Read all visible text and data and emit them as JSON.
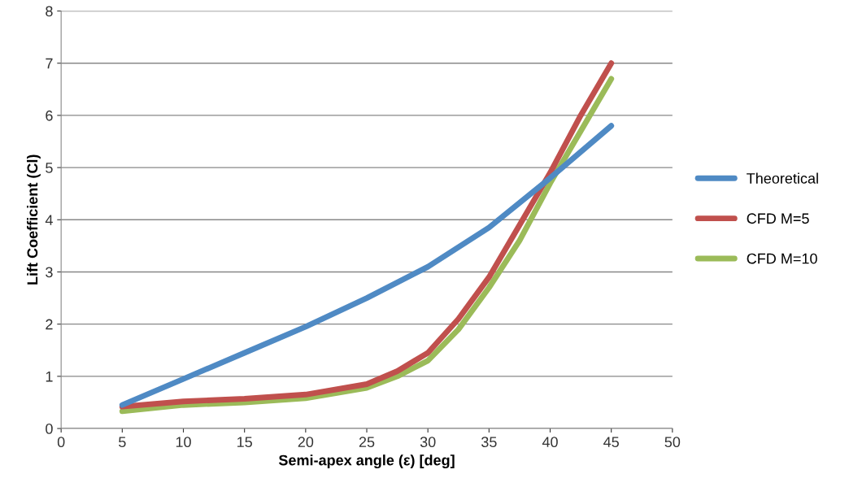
{
  "chart_data": {
    "type": "line",
    "xlabel": "Semi-apex angle (ε) [deg]",
    "ylabel": "Lift Coefficient (Cl)",
    "xlim": [
      0,
      50
    ],
    "xticks": [
      0,
      5,
      10,
      15,
      20,
      25,
      30,
      35,
      40,
      45,
      50
    ],
    "ylim": [
      0,
      8
    ],
    "yticks": [
      0,
      1,
      2,
      3,
      4,
      5,
      6,
      7,
      8
    ],
    "grid": "y",
    "legend": "right",
    "marker": "none",
    "line_style": "solid",
    "series": [
      {
        "name": "Theoretical",
        "color": "#4f8ac4",
        "x": [
          5,
          10,
          15,
          20,
          25,
          30,
          35,
          40,
          45
        ],
        "values": [
          0.45,
          0.95,
          1.45,
          1.95,
          2.5,
          3.1,
          3.85,
          4.8,
          5.8
        ]
      },
      {
        "name": "CFD M=5",
        "color": "#c0504d",
        "x": [
          5,
          10,
          15,
          20,
          25,
          27.5,
          30,
          32.5,
          35,
          37.5,
          40,
          42.5,
          45
        ],
        "values": [
          0.42,
          0.52,
          0.57,
          0.65,
          0.85,
          1.1,
          1.45,
          2.1,
          2.9,
          3.9,
          4.9,
          6.0,
          7.0
        ]
      },
      {
        "name": "CFD M=10",
        "color": "#9bbb59",
        "x": [
          5,
          10,
          15,
          20,
          25,
          27.5,
          30,
          32.5,
          35,
          37.5,
          40,
          42.5,
          45
        ],
        "values": [
          0.33,
          0.45,
          0.5,
          0.58,
          0.78,
          1.0,
          1.3,
          1.9,
          2.7,
          3.6,
          4.7,
          5.7,
          6.7
        ]
      }
    ]
  }
}
